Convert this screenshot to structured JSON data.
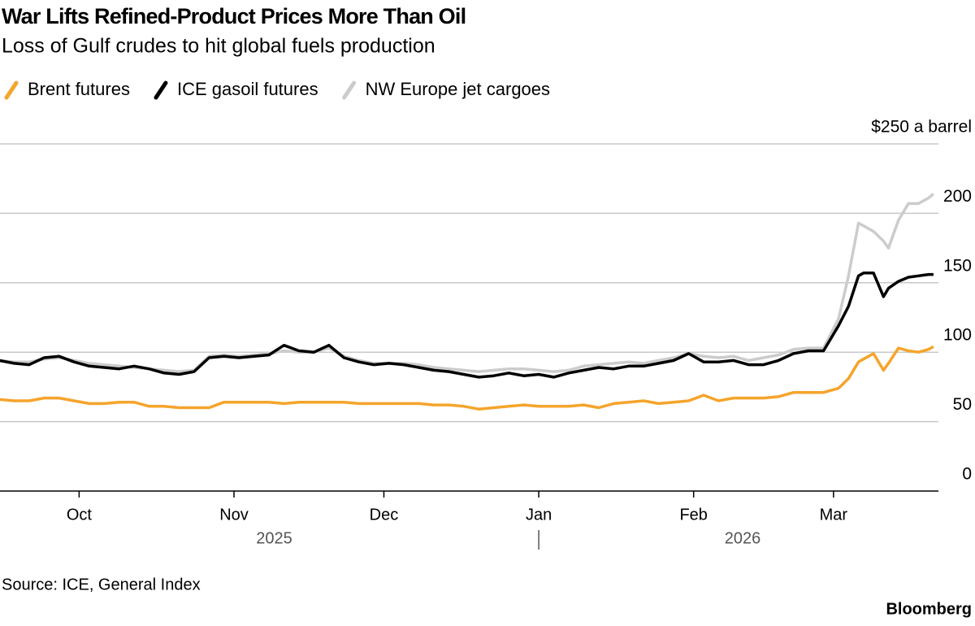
{
  "chart_data": {
    "type": "line",
    "title": "War Lifts Refined-Product Prices More Than Oil",
    "subtitle": "Loss of Gulf crudes to hit global fuels production",
    "source": "Source: ICE, General Index",
    "brand": "Bloomberg",
    "x": [
      0,
      3,
      6,
      9,
      12,
      15,
      18,
      21,
      24,
      27,
      30,
      33,
      36,
      39,
      42,
      45,
      48,
      51,
      54,
      57,
      60,
      63,
      66,
      69,
      72,
      75,
      78,
      81,
      84,
      87,
      90,
      93,
      96,
      99,
      102,
      105,
      108,
      111,
      114,
      117,
      120,
      123,
      126,
      129,
      132,
      135,
      138,
      141,
      144,
      147,
      150,
      153,
      156,
      159,
      162,
      165,
      168,
      170,
      172,
      173,
      175,
      177,
      178,
      180,
      182,
      184,
      186,
      187
    ],
    "xlim": [
      0,
      188
    ],
    "xticks": [
      {
        "value": 16,
        "label": "Oct"
      },
      {
        "value": 47,
        "label": "Nov"
      },
      {
        "value": 77,
        "label": "Dec"
      },
      {
        "value": 108,
        "label": "Jan"
      },
      {
        "value": 139,
        "label": "Feb"
      },
      {
        "value": 167,
        "label": "Mar"
      }
    ],
    "x_group_labels": [
      "2025",
      "2026"
    ],
    "ylim": [
      0,
      250
    ],
    "yticks": [
      0,
      50,
      100,
      150,
      200,
      {
        "value": 250,
        "label": "$250 a barrel"
      }
    ],
    "grid": true,
    "series": [
      {
        "name": "Brent futures",
        "color": "#f5a42c",
        "values": [
          66,
          65,
          65,
          67,
          67,
          65,
          63,
          63,
          64,
          64,
          61,
          61,
          60,
          60,
          60,
          64,
          64,
          64,
          64,
          63,
          64,
          64,
          64,
          64,
          63,
          63,
          63,
          63,
          63,
          62,
          62,
          61,
          59,
          60,
          61,
          62,
          61,
          61,
          61,
          62,
          60,
          63,
          64,
          65,
          63,
          64,
          65,
          69,
          65,
          67,
          67,
          67,
          68,
          71,
          71,
          71,
          74,
          81,
          93,
          95,
          99,
          87,
          92,
          103,
          101,
          100,
          102,
          104
        ]
      },
      {
        "name": "ICE gasoil futures",
        "color": "#000000",
        "values": [
          94,
          92,
          91,
          96,
          97,
          93,
          90,
          89,
          88,
          90,
          88,
          85,
          84,
          86,
          96,
          97,
          96,
          97,
          98,
          105,
          101,
          100,
          105,
          96,
          93,
          91,
          92,
          91,
          89,
          87,
          86,
          84,
          82,
          83,
          85,
          83,
          84,
          82,
          85,
          87,
          89,
          88,
          90,
          90,
          92,
          94,
          99,
          93,
          93,
          94,
          91,
          91,
          94,
          99,
          101,
          101,
          119,
          133,
          155,
          157,
          157,
          140,
          146,
          151,
          154,
          155,
          156,
          156
        ]
      },
      {
        "name": "NW Europe jet cargoes",
        "color": "#cccccc",
        "values": [
          94,
          93,
          93,
          95,
          96,
          94,
          92,
          91,
          90,
          89,
          88,
          87,
          86,
          87,
          97,
          98,
          97,
          98,
          99,
          101,
          100,
          100,
          103,
          97,
          94,
          92,
          92,
          92,
          91,
          89,
          88,
          87,
          86,
          87,
          88,
          88,
          87,
          86,
          87,
          90,
          91,
          92,
          93,
          92,
          94,
          96,
          99,
          97,
          96,
          97,
          94,
          96,
          98,
          102,
          103,
          103,
          124,
          155,
          193,
          191,
          187,
          180,
          175,
          195,
          207,
          207,
          211,
          214
        ]
      }
    ]
  }
}
